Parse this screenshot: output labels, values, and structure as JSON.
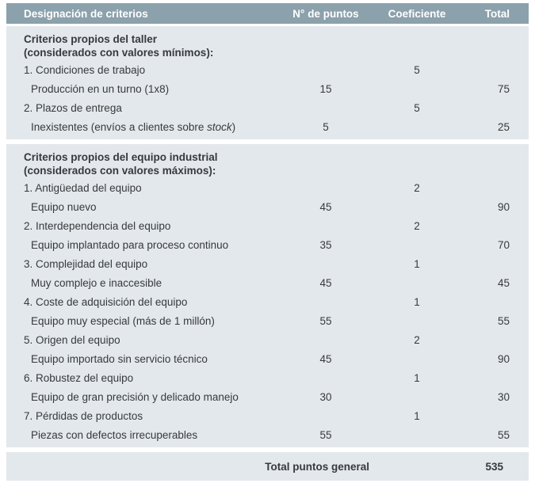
{
  "table": {
    "columns": {
      "designacion": "Designación de criterios",
      "puntos": "N° de puntos",
      "coeficiente": "Coeficiente",
      "total": "Total"
    },
    "sections": [
      {
        "heading_line1": "Criterios propios del taller",
        "heading_line2": "(considerados con valores mínimos):",
        "rows": [
          {
            "label": "1. Condiciones de trabajo",
            "puntos": "",
            "coef": "5",
            "total": ""
          },
          {
            "label": "Producción en un turno (1x8)",
            "puntos": "15",
            "coef": "",
            "total": "75"
          },
          {
            "label": "2. Plazos de entrega",
            "puntos": "",
            "coef": "5",
            "total": ""
          },
          {
            "label_pre": "Inexistentes (envíos a clientes sobre ",
            "label_italic": "stock",
            "label_post": ")",
            "puntos": "5",
            "coef": "",
            "total": "25"
          }
        ]
      },
      {
        "heading_line1": "Criterios propios del equipo industrial",
        "heading_line2": "(considerados con valores máximos):",
        "rows": [
          {
            "label": "1. Antigüedad del equipo",
            "puntos": "",
            "coef": "2",
            "total": ""
          },
          {
            "label": "Equipo nuevo",
            "puntos": "45",
            "coef": "",
            "total": "90"
          },
          {
            "label": "2. Interdependencia del equipo",
            "puntos": "",
            "coef": "2",
            "total": ""
          },
          {
            "label": "Equipo implantado para proceso continuo",
            "puntos": "35",
            "coef": "",
            "total": "70"
          },
          {
            "label": "3. Complejidad del equipo",
            "puntos": "",
            "coef": "1",
            "total": ""
          },
          {
            "label": "Muy complejo e inaccesible",
            "puntos": "45",
            "coef": "",
            "total": "45"
          },
          {
            "label": "4. Coste de adquisición del equipo",
            "puntos": "",
            "coef": "1",
            "total": ""
          },
          {
            "label": "Equipo muy especial (más de 1 millón)",
            "puntos": "55",
            "coef": "",
            "total": "55"
          },
          {
            "label": "5. Origen del equipo",
            "puntos": "",
            "coef": "2",
            "total": ""
          },
          {
            "label": "Equipo importado sin servicio técnico",
            "puntos": "45",
            "coef": "",
            "total": "90"
          },
          {
            "label": "6. Robustez del equipo",
            "puntos": "",
            "coef": "1",
            "total": ""
          },
          {
            "label": "Equipo de gran precisión y delicado manejo",
            "puntos": "30",
            "coef": "",
            "total": "30"
          },
          {
            "label": "7. Pérdidas de productos",
            "puntos": "",
            "coef": "1",
            "total": ""
          },
          {
            "label": "Piezas con defectos irrecuperables",
            "puntos": "55",
            "coef": "",
            "total": "55"
          }
        ]
      }
    ],
    "footer": {
      "label": "Total puntos general",
      "total": "535"
    }
  },
  "colors": {
    "header_bg": "#8BA1AB",
    "section_bg": "#E3E8EC",
    "text": "#373A3C",
    "header_text": "#FFFFFF"
  }
}
